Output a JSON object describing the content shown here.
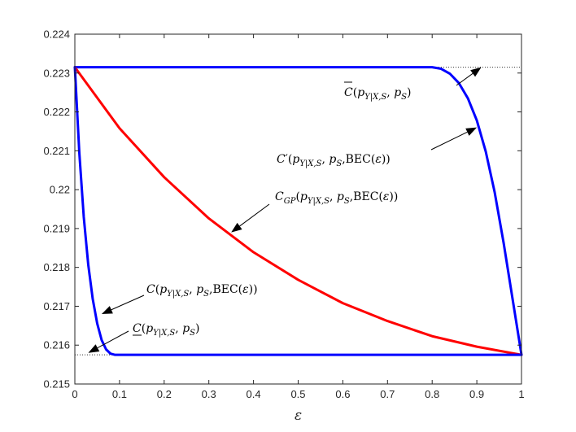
{
  "chart_data": {
    "type": "line",
    "xlabel": "ε",
    "ylabel": "",
    "xlim": [
      0,
      1
    ],
    "ylim": [
      0.215,
      0.224
    ],
    "x_ticks": [
      "0",
      "0.1",
      "0.2",
      "0.3",
      "0.4",
      "0.5",
      "0.6",
      "0.7",
      "0.8",
      "0.9",
      "1"
    ],
    "y_ticks": [
      "0.215",
      "0.216",
      "0.217",
      "0.218",
      "0.219",
      "0.22",
      "0.221",
      "0.222",
      "0.223",
      "0.224"
    ],
    "grid": false,
    "reference_lines": [
      {
        "style": "dotted",
        "y": 0.22315,
        "x": [
          0,
          1
        ]
      },
      {
        "style": "dotted",
        "y": 0.21575,
        "x": [
          0,
          1
        ]
      }
    ],
    "series": [
      {
        "color": "#0000ff",
        "x": [
          0,
          0.8,
          0.82,
          0.84,
          0.86,
          0.88,
          0.9,
          0.92,
          0.94,
          0.96,
          0.98,
          1
        ],
        "values": [
          0.22315,
          0.22315,
          0.22311,
          0.22298,
          0.22274,
          0.22235,
          0.22178,
          0.22098,
          0.21993,
          0.21863,
          0.21719,
          0.21575
        ]
      },
      {
        "color": "#ff0000",
        "x": [
          0,
          0.1,
          0.2,
          0.3,
          0.4,
          0.5,
          0.6,
          0.7,
          0.8,
          0.9,
          1
        ],
        "values": [
          0.22315,
          0.22158,
          0.22032,
          0.21926,
          0.21839,
          0.21768,
          0.21708,
          0.21662,
          0.21623,
          0.21596,
          0.21575
        ]
      },
      {
        "color": "#0000ff",
        "x": [
          0,
          0.01,
          0.02,
          0.03,
          0.04,
          0.05,
          0.06,
          0.07,
          0.08,
          0.09,
          0.1,
          1
        ],
        "values": [
          0.22315,
          0.22095,
          0.21929,
          0.21807,
          0.21719,
          0.21656,
          0.21613,
          0.21589,
          0.21578,
          0.21575,
          0.21575,
          0.21575
        ]
      }
    ],
    "annotations": [
      {
        "label": "C̄(p_{Y|X,S}, p_S)",
        "points_to": [
          0.91,
          0.22315
        ]
      },
      {
        "label": "C′(p_{Y|X,S}, p_S, BEC(ε))",
        "points_to": [
          0.9,
          0.2216
        ]
      },
      {
        "label": "C_{GP}(p_{Y|X,S}, p_S, BEC(ε))",
        "points_to": [
          0.35,
          0.2189
        ]
      },
      {
        "label": "C(p_{Y|X,S}, p_S, BEC(ε))",
        "points_to": [
          0.06,
          0.2168
        ]
      },
      {
        "label": "C̲(p_{Y|X,S}, p_S)",
        "points_to": [
          0.03,
          0.2158
        ]
      }
    ],
    "line_colors": {
      "blue": "#0000ff",
      "red": "#ff0000",
      "axes": "#262626",
      "reference": "#333333"
    }
  }
}
